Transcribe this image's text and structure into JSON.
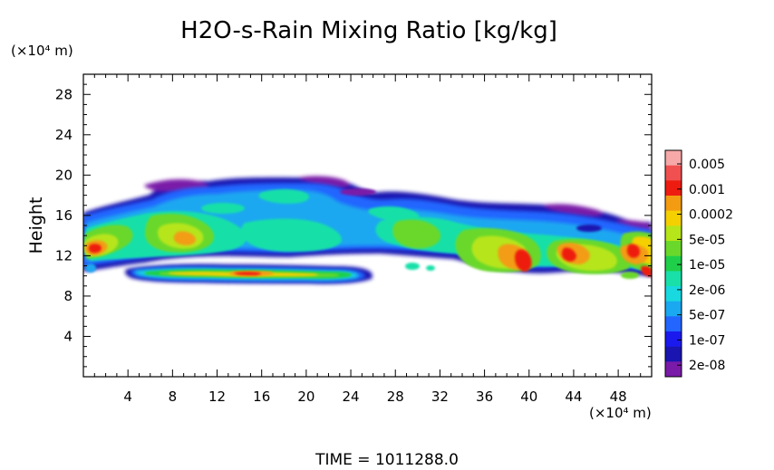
{
  "chart_data": {
    "type": "heatmap",
    "title": "H2O-s-Rain Mixing Ratio [kg/kg]",
    "ylabel": "Height",
    "xlabel": "",
    "x_unit_label": "(×10⁴ m)",
    "y_unit_label": "(×10⁴ m)",
    "x_range": [
      0,
      51
    ],
    "y_range": [
      0,
      30
    ],
    "x_ticks": [
      4,
      8,
      12,
      16,
      20,
      24,
      28,
      32,
      36,
      40,
      44,
      48
    ],
    "y_ticks": [
      4,
      8,
      12,
      16,
      20,
      24,
      28
    ],
    "x_tick_labels": [
      "4",
      "8",
      "12",
      "16",
      "20",
      "24",
      "28",
      "32",
      "36",
      "40",
      "44",
      "48"
    ],
    "y_tick_labels": [
      "4",
      "8",
      "12",
      "16",
      "20",
      "24",
      "28"
    ],
    "colorbar": {
      "labels": [
        "0.005",
        "0.001",
        "0.0002",
        "5e-05",
        "1e-05",
        "2e-06",
        "5e-07",
        "1e-07",
        "2e-08"
      ],
      "colors": [
        "#f7a8a8",
        "#f05050",
        "#ee1c10",
        "#f39c12",
        "#f4d000",
        "#b6e51a",
        "#6ad82a",
        "#1fcf4a",
        "#18e0a8",
        "#18d8e0",
        "#1aa8f0",
        "#2266ff",
        "#1a1aee",
        "#1a14b0",
        "#7a1aa8"
      ]
    },
    "field_regions": [
      {
        "x": [
          0,
          10
        ],
        "y": [
          11,
          16.5
        ],
        "level": "1e-05"
      },
      {
        "x": [
          6,
          14
        ],
        "y": [
          12,
          17
        ],
        "level": "5e-05"
      },
      {
        "x": [
          14,
          26
        ],
        "y": [
          14,
          19.5
        ],
        "level": "5e-07"
      },
      {
        "x": [
          26,
          36
        ],
        "y": [
          12,
          16.5
        ],
        "level": "2e-06"
      },
      {
        "x": [
          36,
          46
        ],
        "y": [
          10,
          14.5
        ],
        "level": "0.001"
      },
      {
        "x": [
          44,
          51
        ],
        "y": [
          10,
          15
        ],
        "level": "0.001"
      },
      {
        "x": [
          5,
          26
        ],
        "y": [
          9.5,
          11
        ],
        "level": "0.0002"
      }
    ],
    "time_label": "TIME = 1011288.0"
  }
}
